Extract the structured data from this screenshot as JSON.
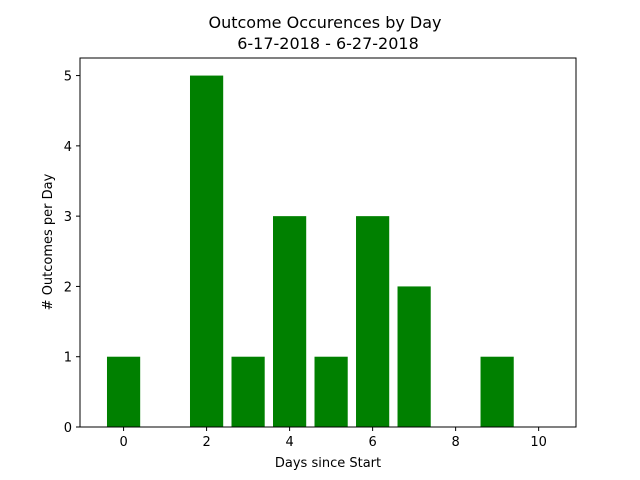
{
  "chart_data": {
    "type": "bar",
    "title": "Outcome Occurences by Day",
    "subtitle": "6-17-2018 - 6-27-2018",
    "xlabel": "Days since Start",
    "ylabel": "# Outcomes per Day",
    "x": [
      0,
      2,
      3,
      4,
      5,
      6,
      7,
      9
    ],
    "values": [
      1,
      5,
      1,
      3,
      1,
      3,
      2,
      1
    ],
    "xlim": [
      -1.05,
      10.9
    ],
    "ylim": [
      0,
      5.25
    ],
    "xticks": [
      0,
      2,
      4,
      6,
      8,
      10
    ],
    "yticks": [
      0,
      1,
      2,
      3,
      4,
      5
    ],
    "bar_color": "#008000",
    "grid": false,
    "legend": "none"
  }
}
